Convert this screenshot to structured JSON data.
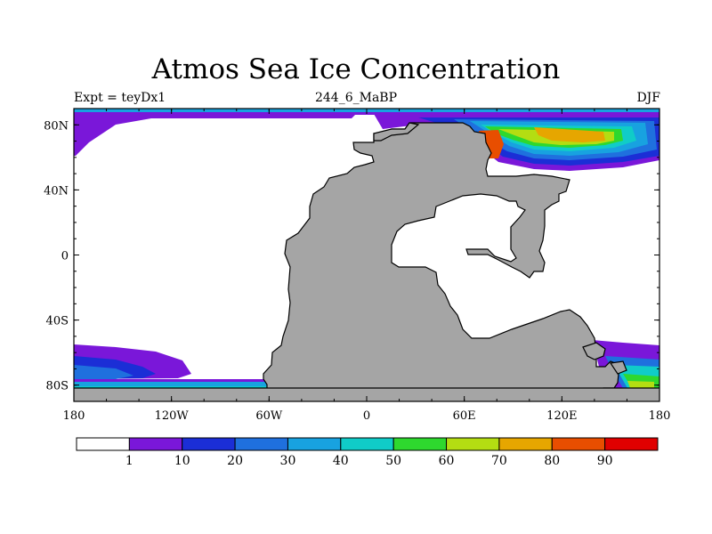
{
  "figure": {
    "title": "Atmos Sea Ice Concentration",
    "left_label": "Expt = teyDx1",
    "center_label": "244_6_MaBP",
    "right_label": "DJF"
  },
  "axes": {
    "x_ticks": [
      {
        "value": -180,
        "label": "180"
      },
      {
        "value": -120,
        "label": "120W"
      },
      {
        "value": -60,
        "label": "60W"
      },
      {
        "value": 0,
        "label": "0"
      },
      {
        "value": 60,
        "label": "60E"
      },
      {
        "value": 120,
        "label": "120E"
      },
      {
        "value": 180,
        "label": "180"
      }
    ],
    "y_ticks": [
      {
        "value": 80,
        "label": "80N"
      },
      {
        "value": 40,
        "label": "40N"
      },
      {
        "value": 0,
        "label": "0"
      },
      {
        "value": -40,
        "label": "40S"
      },
      {
        "value": -80,
        "label": "80S"
      }
    ],
    "lon_range": [
      -180,
      180
    ],
    "lat_range": [
      -90,
      90
    ]
  },
  "colorbar": {
    "levels": [
      "1",
      "10",
      "20",
      "30",
      "40",
      "50",
      "60",
      "70",
      "80",
      "90"
    ],
    "colors": [
      "#ffffff",
      "#7a17d9",
      "#1b2ed6",
      "#1f70de",
      "#18a2e0",
      "#10ccc8",
      "#2ed82e",
      "#b4dd12",
      "#e6a600",
      "#e84e00",
      "#e00000"
    ]
  },
  "colors": {
    "land": "#a5a5a5",
    "ocean": "#ffffff",
    "coast": "#000000"
  }
}
